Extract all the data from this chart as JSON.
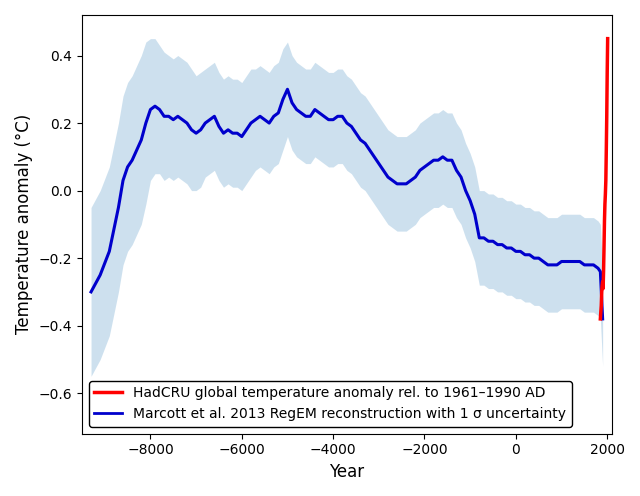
{
  "title": "",
  "xlabel": "Year",
  "ylabel": "Temperature anomaly (°C)",
  "xlim": [
    -9500,
    2100
  ],
  "ylim": [
    -0.72,
    0.52
  ],
  "xticks": [
    -8000,
    -6000,
    -4000,
    -2000,
    0,
    2000
  ],
  "yticks": [
    -0.6,
    -0.4,
    -0.2,
    0.0,
    0.2,
    0.4
  ],
  "blue_color": "#0000CC",
  "red_color": "#FF0000",
  "shade_color": "#B8D4E8",
  "shade_alpha": 0.7,
  "legend_loc": "lower left",
  "legend_fontsize": 10,
  "linewidth_blue": 2.2,
  "linewidth_red": 2.5,
  "background_color": "#ffffff",
  "marcott_x": [
    -9300,
    -9100,
    -8900,
    -8700,
    -8600,
    -8500,
    -8400,
    -8300,
    -8200,
    -8100,
    -8000,
    -7900,
    -7800,
    -7700,
    -7600,
    -7500,
    -7400,
    -7300,
    -7200,
    -7100,
    -7000,
    -6900,
    -6800,
    -6700,
    -6600,
    -6500,
    -6400,
    -6300,
    -6200,
    -6100,
    -6000,
    -5900,
    -5800,
    -5700,
    -5600,
    -5500,
    -5400,
    -5300,
    -5200,
    -5100,
    -5000,
    -4900,
    -4800,
    -4700,
    -4600,
    -4500,
    -4400,
    -4300,
    -4200,
    -4100,
    -4000,
    -3900,
    -3800,
    -3700,
    -3600,
    -3500,
    -3400,
    -3300,
    -3200,
    -3100,
    -3000,
    -2900,
    -2800,
    -2700,
    -2600,
    -2500,
    -2400,
    -2300,
    -2200,
    -2100,
    -2000,
    -1900,
    -1800,
    -1700,
    -1600,
    -1500,
    -1400,
    -1300,
    -1200,
    -1100,
    -1000,
    -900,
    -800,
    -700,
    -600,
    -500,
    -400,
    -300,
    -200,
    -100,
    0,
    100,
    200,
    300,
    400,
    500,
    600,
    700,
    800,
    900,
    1000,
    1100,
    1200,
    1300,
    1400,
    1500,
    1600,
    1700,
    1800,
    1850,
    1900
  ],
  "marcott_y": [
    -0.3,
    -0.25,
    -0.18,
    -0.05,
    0.03,
    0.07,
    0.09,
    0.12,
    0.15,
    0.2,
    0.24,
    0.25,
    0.24,
    0.22,
    0.22,
    0.21,
    0.22,
    0.21,
    0.2,
    0.18,
    0.17,
    0.18,
    0.2,
    0.21,
    0.22,
    0.19,
    0.17,
    0.18,
    0.17,
    0.17,
    0.16,
    0.18,
    0.2,
    0.21,
    0.22,
    0.21,
    0.2,
    0.22,
    0.23,
    0.27,
    0.3,
    0.26,
    0.24,
    0.23,
    0.22,
    0.22,
    0.24,
    0.23,
    0.22,
    0.21,
    0.21,
    0.22,
    0.22,
    0.2,
    0.19,
    0.17,
    0.15,
    0.14,
    0.12,
    0.1,
    0.08,
    0.06,
    0.04,
    0.03,
    0.02,
    0.02,
    0.02,
    0.03,
    0.04,
    0.06,
    0.07,
    0.08,
    0.09,
    0.09,
    0.1,
    0.09,
    0.09,
    0.06,
    0.04,
    0.0,
    -0.03,
    -0.07,
    -0.14,
    -0.14,
    -0.15,
    -0.15,
    -0.16,
    -0.16,
    -0.17,
    -0.17,
    -0.18,
    -0.18,
    -0.19,
    -0.19,
    -0.2,
    -0.2,
    -0.21,
    -0.22,
    -0.22,
    -0.22,
    -0.21,
    -0.21,
    -0.21,
    -0.21,
    -0.21,
    -0.22,
    -0.22,
    -0.22,
    -0.23,
    -0.24,
    -0.38
  ],
  "marcott_upper": [
    -0.05,
    0.0,
    0.07,
    0.2,
    0.28,
    0.32,
    0.34,
    0.37,
    0.4,
    0.44,
    0.45,
    0.45,
    0.43,
    0.41,
    0.4,
    0.39,
    0.4,
    0.39,
    0.38,
    0.36,
    0.34,
    0.35,
    0.36,
    0.37,
    0.38,
    0.35,
    0.33,
    0.34,
    0.33,
    0.33,
    0.32,
    0.34,
    0.36,
    0.36,
    0.37,
    0.36,
    0.35,
    0.37,
    0.38,
    0.42,
    0.44,
    0.4,
    0.38,
    0.37,
    0.36,
    0.36,
    0.38,
    0.37,
    0.36,
    0.35,
    0.35,
    0.36,
    0.36,
    0.34,
    0.33,
    0.31,
    0.29,
    0.28,
    0.26,
    0.24,
    0.22,
    0.2,
    0.18,
    0.17,
    0.16,
    0.16,
    0.16,
    0.17,
    0.18,
    0.2,
    0.21,
    0.22,
    0.23,
    0.23,
    0.24,
    0.23,
    0.23,
    0.2,
    0.18,
    0.14,
    0.11,
    0.07,
    0.0,
    -0.0,
    -0.01,
    -0.01,
    -0.02,
    -0.02,
    -0.03,
    -0.03,
    -0.04,
    -0.04,
    -0.05,
    -0.05,
    -0.06,
    -0.06,
    -0.07,
    -0.08,
    -0.08,
    -0.08,
    -0.07,
    -0.07,
    -0.07,
    -0.07,
    -0.07,
    -0.08,
    -0.08,
    -0.08,
    -0.09,
    -0.1,
    -0.24
  ],
  "marcott_lower": [
    -0.55,
    -0.5,
    -0.43,
    -0.3,
    -0.22,
    -0.18,
    -0.16,
    -0.13,
    -0.1,
    -0.04,
    0.03,
    0.05,
    0.05,
    0.03,
    0.04,
    0.03,
    0.04,
    0.03,
    0.02,
    0.0,
    0.0,
    0.01,
    0.04,
    0.05,
    0.06,
    0.03,
    0.01,
    0.02,
    0.01,
    0.01,
    0.0,
    0.02,
    0.04,
    0.06,
    0.07,
    0.06,
    0.05,
    0.07,
    0.08,
    0.12,
    0.16,
    0.12,
    0.1,
    0.09,
    0.08,
    0.08,
    0.1,
    0.09,
    0.08,
    0.07,
    0.07,
    0.08,
    0.08,
    0.06,
    0.05,
    0.03,
    0.01,
    0.0,
    -0.02,
    -0.04,
    -0.06,
    -0.08,
    -0.1,
    -0.11,
    -0.12,
    -0.12,
    -0.12,
    -0.11,
    -0.1,
    -0.08,
    -0.07,
    -0.06,
    -0.05,
    -0.05,
    -0.04,
    -0.05,
    -0.05,
    -0.08,
    -0.1,
    -0.14,
    -0.17,
    -0.21,
    -0.28,
    -0.28,
    -0.29,
    -0.29,
    -0.3,
    -0.3,
    -0.31,
    -0.31,
    -0.32,
    -0.32,
    -0.33,
    -0.33,
    -0.34,
    -0.34,
    -0.35,
    -0.36,
    -0.36,
    -0.36,
    -0.35,
    -0.35,
    -0.35,
    -0.35,
    -0.35,
    -0.36,
    -0.36,
    -0.36,
    -0.37,
    -0.38,
    -0.52
  ],
  "hadcru_x": [
    1850,
    1860,
    1870,
    1880,
    1890,
    1900,
    1910,
    1920,
    1930,
    1940,
    1950,
    1960,
    1970,
    1980,
    1990,
    2000,
    2010
  ],
  "hadcru_y": [
    -0.38,
    -0.36,
    -0.34,
    -0.3,
    -0.28,
    -0.27,
    -0.29,
    -0.24,
    -0.17,
    -0.09,
    -0.04,
    -0.01,
    0.03,
    0.12,
    0.22,
    0.35,
    0.45
  ]
}
